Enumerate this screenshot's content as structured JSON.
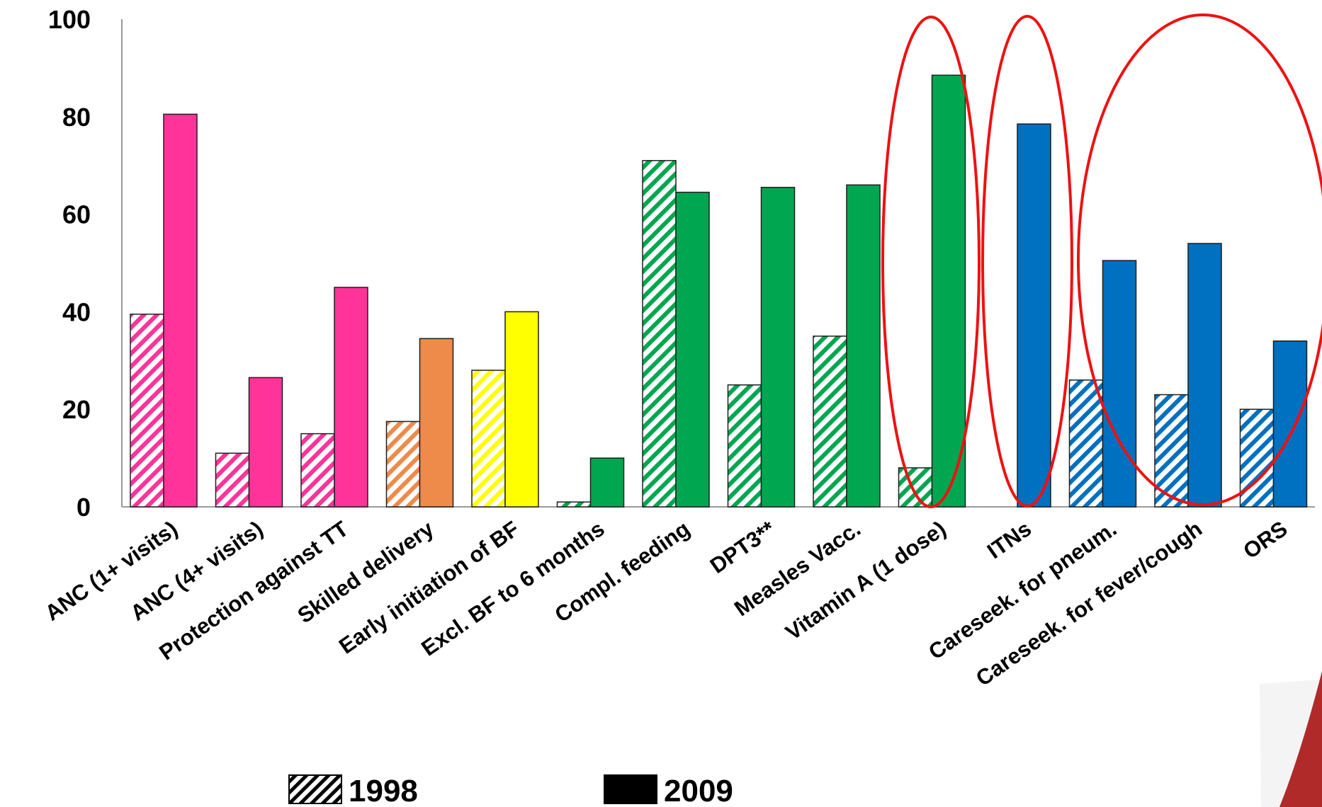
{
  "chart_data": {
    "type": "bar",
    "title": "",
    "xlabel": "",
    "ylabel": "",
    "ylim": [
      0,
      100
    ],
    "yticks": [
      "0",
      "20",
      "40",
      "60",
      "80",
      "100"
    ],
    "grid": false,
    "categories": [
      "ANC (1+ visits)",
      "ANC (4+ visits)",
      "Protection against TT",
      "Skilled delivery",
      "Early initiation of BF",
      "Excl. BF to 6 months",
      "Compl. feeding",
      "DPT3**",
      "Measles Vacc.",
      "Vitamin A  (1 dose)",
      "ITNs",
      "Careseek. for pneum.",
      "Careseek. for fever/cough",
      "ORS"
    ],
    "colors": [
      "#ff3399",
      "#ff3399",
      "#ff3399",
      "#ee8a4a",
      "#ffff00",
      "#00a650",
      "#00a650",
      "#00a650",
      "#00a650",
      "#00a650",
      "#0070c0",
      "#0070c0",
      "#0070c0",
      "#0070c0"
    ],
    "series": [
      {
        "name": "1998",
        "pattern": "hatched",
        "values": [
          39.5,
          11,
          15,
          17.5,
          28,
          1,
          71,
          25,
          35,
          8,
          null,
          26,
          23,
          20
        ]
      },
      {
        "name": "2009",
        "pattern": "solid",
        "values": [
          80.5,
          26.5,
          45,
          34.5,
          40,
          10,
          64.5,
          65.5,
          66,
          88.5,
          78.5,
          50.5,
          54,
          34
        ]
      }
    ],
    "legend": {
      "position": "bottom",
      "items": [
        "1998",
        "2009"
      ]
    },
    "annotations": [
      {
        "shape": "ellipse",
        "color": "#ee1111",
        "target": "Vitamin A  (1 dose)"
      },
      {
        "shape": "ellipse",
        "color": "#ee1111",
        "target": "ITNs"
      },
      {
        "shape": "ellipse",
        "color": "#ee1111",
        "target": [
          "Careseek. for pneum.",
          "Careseek. for fever/cough",
          "ORS"
        ]
      }
    ],
    "corner_decoration_color": "#b02a2a"
  }
}
